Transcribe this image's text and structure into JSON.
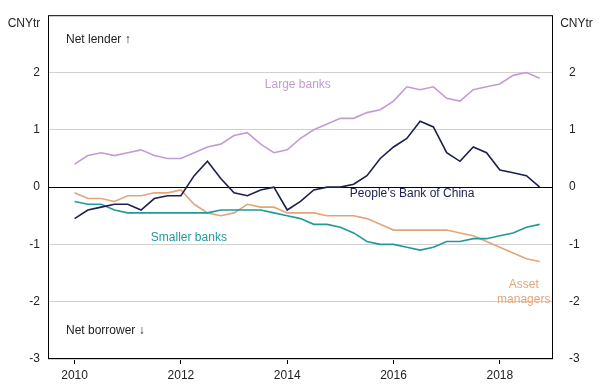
{
  "chart_data": {
    "type": "line",
    "ylabel": "CNYtr",
    "y2label": "CNYtr",
    "annotations": [
      {
        "text": "Net lender ↑"
      },
      {
        "text": "Net borrower ↓"
      }
    ],
    "x": [
      2010,
      2010.25,
      2010.5,
      2010.75,
      2011,
      2011.25,
      2011.5,
      2011.75,
      2012,
      2012.25,
      2012.5,
      2012.75,
      2013,
      2013.25,
      2013.5,
      2013.75,
      2014,
      2014.25,
      2014.5,
      2014.75,
      2015,
      2015.25,
      2015.5,
      2015.75,
      2016,
      2016.25,
      2016.5,
      2016.75,
      2017,
      2017.25,
      2017.5,
      2017.75,
      2018,
      2018.25,
      2018.5,
      2018.75
    ],
    "series": [
      {
        "name": "Large banks",
        "color": "#c39bd3",
        "values": [
          0.4,
          0.55,
          0.6,
          0.55,
          0.6,
          0.65,
          0.55,
          0.5,
          0.5,
          0.6,
          0.7,
          0.75,
          0.9,
          0.95,
          0.75,
          0.6,
          0.65,
          0.85,
          1.0,
          1.1,
          1.2,
          1.2,
          1.3,
          1.35,
          1.5,
          1.75,
          1.7,
          1.75,
          1.55,
          1.5,
          1.7,
          1.75,
          1.8,
          1.95,
          2.0,
          1.9
        ]
      },
      {
        "name": "People’s Bank of China",
        "color": "#1c1f4f",
        "values": [
          -0.55,
          -0.4,
          -0.35,
          -0.3,
          -0.3,
          -0.4,
          -0.2,
          -0.15,
          -0.15,
          0.2,
          0.45,
          0.15,
          -0.1,
          -0.15,
          -0.05,
          0.0,
          -0.4,
          -0.25,
          -0.05,
          0.0,
          0.0,
          0.05,
          0.2,
          0.5,
          0.7,
          0.85,
          1.15,
          1.05,
          0.6,
          0.45,
          0.7,
          0.6,
          0.3,
          0.25,
          0.2,
          0.0
        ]
      },
      {
        "name": "Smaller banks",
        "color": "#21999b",
        "values": [
          -0.25,
          -0.3,
          -0.3,
          -0.4,
          -0.45,
          -0.45,
          -0.45,
          -0.45,
          -0.45,
          -0.45,
          -0.45,
          -0.4,
          -0.4,
          -0.4,
          -0.4,
          -0.45,
          -0.5,
          -0.55,
          -0.65,
          -0.65,
          -0.7,
          -0.8,
          -0.95,
          -1.0,
          -1.0,
          -1.05,
          -1.1,
          -1.05,
          -0.95,
          -0.95,
          -0.9,
          -0.9,
          -0.85,
          -0.8,
          -0.7,
          -0.65
        ]
      },
      {
        "name": "Asset managers",
        "color": "#e3a57a",
        "values": [
          -0.1,
          -0.2,
          -0.2,
          -0.25,
          -0.15,
          -0.15,
          -0.1,
          -0.1,
          -0.05,
          -0.3,
          -0.45,
          -0.5,
          -0.45,
          -0.3,
          -0.35,
          -0.35,
          -0.45,
          -0.45,
          -0.45,
          -0.5,
          -0.5,
          -0.5,
          -0.55,
          -0.65,
          -0.75,
          -0.75,
          -0.75,
          -0.75,
          -0.75,
          -0.8,
          -0.85,
          -0.95,
          -1.05,
          -1.15,
          -1.25,
          -1.3
        ]
      }
    ],
    "xlim": [
      2009.5,
      2019
    ],
    "xticks": [
      2010,
      2012,
      2014,
      2016,
      2018
    ],
    "ylim": [
      -3,
      3
    ],
    "yticks": [
      -3,
      -2,
      -1,
      0,
      1,
      2
    ],
    "y2lim": [
      -3,
      3
    ],
    "y2ticks": [
      -3,
      -2,
      -1,
      0,
      1,
      2
    ],
    "grid": true,
    "legend": "none"
  }
}
